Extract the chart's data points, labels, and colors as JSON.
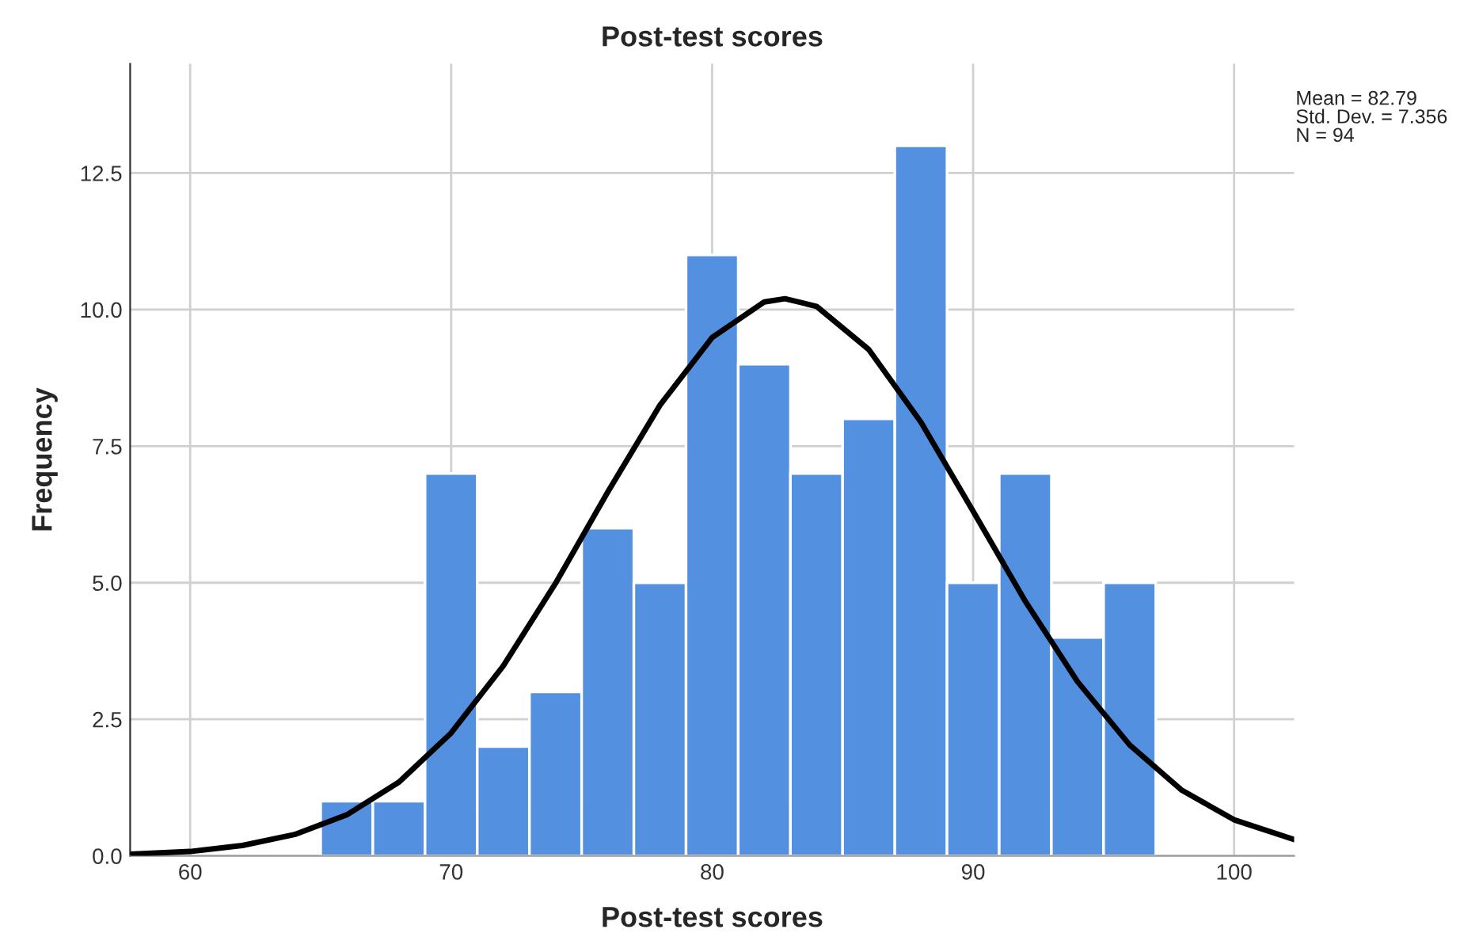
{
  "chart_data": {
    "type": "histogram",
    "title": "Post-test scores",
    "xlabel": "Post-test scores",
    "ylabel": "Frequency",
    "annotations": [
      "Mean = 82.79\nStd. Dev. = 7.356\nN = 94"
    ],
    "series": [
      {
        "color": "#5391e0",
        "bins": [
          65,
          67,
          69,
          71,
          73,
          75,
          77,
          79,
          81,
          83,
          85,
          87,
          89,
          91,
          93,
          95,
          97
        ],
        "values": [
          1,
          1,
          7,
          2,
          3,
          6,
          5,
          11,
          9,
          7,
          8,
          13,
          5,
          7,
          4,
          5
        ]
      },
      {
        "type": "line",
        "color": "#000000",
        "x": [
          57.7,
          60,
          62,
          64,
          66,
          68,
          70,
          72,
          74,
          76,
          78,
          80,
          82,
          82.79,
          84,
          86,
          88,
          90,
          92,
          94,
          96,
          98,
          100,
          102.3
        ],
        "values": [
          0.03,
          0.08,
          0.19,
          0.39,
          0.75,
          1.35,
          2.25,
          3.48,
          4.99,
          6.66,
          8.25,
          9.49,
          10.14,
          10.2,
          10.06,
          9.27,
          7.94,
          6.31,
          4.66,
          3.19,
          2.03,
          1.2,
          0.66,
          0.3
        ]
      }
    ],
    "xlim": [
      57.7,
      102.3
    ],
    "ylim": [
      0,
      14.5
    ],
    "xticks": [
      60,
      70,
      80,
      90,
      100
    ],
    "yticks": [
      {
        "value": 0,
        "label": "0.0"
      },
      {
        "value": 2.5,
        "label": "2.5"
      },
      {
        "value": 5,
        "label": "5.0"
      },
      {
        "value": 7.5,
        "label": "7.5"
      },
      {
        "value": 10,
        "label": "10.0"
      },
      {
        "value": 12.5,
        "label": "12.5"
      }
    ],
    "grid": true,
    "legend": false
  }
}
